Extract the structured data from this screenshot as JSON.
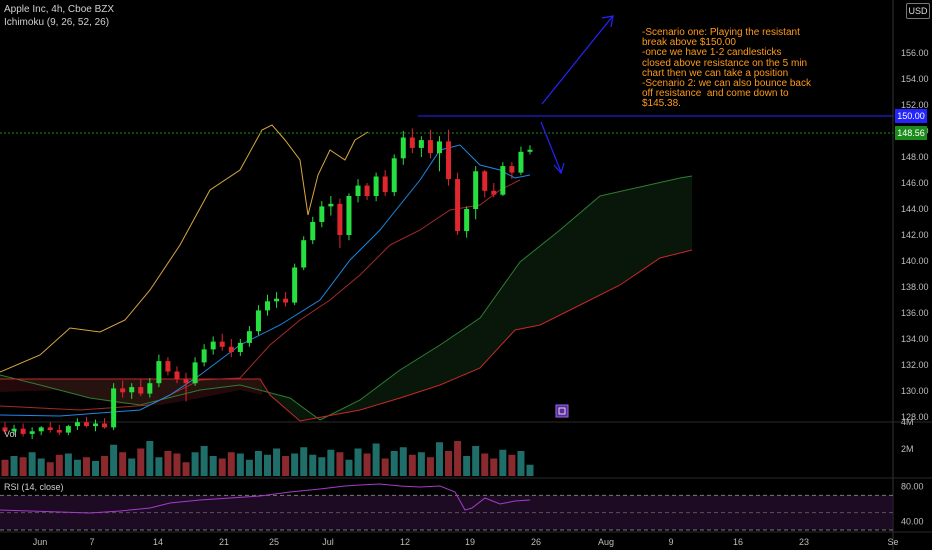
{
  "header": {
    "symbol_line": "Apple Inc, 4h, Cboe BZX",
    "indicator_line": "Ichimoku (9, 26, 52, 26)",
    "scale_badge": "USD"
  },
  "colors": {
    "background": "#000000",
    "candle_up": "#26e041",
    "candle_down": "#e0262f",
    "vol_up": "#1f6e6a",
    "vol_down": "#8a2a2e",
    "conversion_line": "#1e88e5",
    "base_line": "#a52a2a",
    "lagging_span": "#d8a640",
    "leading_a": "#2e7d32",
    "leading_b": "#c62828",
    "resistance": "#2424ff",
    "current_price": "#1b8c1b",
    "rsi_line": "#a63cc6",
    "annotation_text": "#ff9a1a"
  },
  "annotation": {
    "text": "-Scenario one: Playing the resistant break above $150.00\n-once we have 1-2 candlesticks closed above resistance on the 5 min chart then we can take a position\n-Scenario 2: we can also bounce back off resistance  and come down to $145.38.",
    "icon": "calendar-icon"
  },
  "chart_data": [
    {
      "type": "candlestick",
      "title": "Apple Inc, 4h, Cboe BZX",
      "ylim": [
        126,
        158
      ],
      "y_ticks": [
        "128.00",
        "130.00",
        "132.00",
        "134.00",
        "136.00",
        "138.00",
        "140.00",
        "142.00",
        "144.00",
        "146.00",
        "148.00",
        "150.00",
        "152.00",
        "154.00",
        "156.00"
      ],
      "x_ticks": [
        "Jun",
        "7",
        "14",
        "21",
        "25",
        "Jul",
        "12",
        "19",
        "26",
        "Aug",
        "9",
        "16",
        "23",
        "Se"
      ],
      "resistance_label": "150.00",
      "resistance_value": 150.0,
      "current_price_label": "148.56",
      "current_price": 148.56,
      "candles": [
        {
          "o": 127.2,
          "h": 127.6,
          "l": 126.7,
          "c": 126.9
        },
        {
          "o": 126.9,
          "h": 127.4,
          "l": 126.6,
          "c": 127.1
        },
        {
          "o": 127.1,
          "h": 127.5,
          "l": 126.5,
          "c": 126.7
        },
        {
          "o": 126.7,
          "h": 127.2,
          "l": 126.3,
          "c": 126.9
        },
        {
          "o": 126.9,
          "h": 127.3,
          "l": 126.6,
          "c": 127.2
        },
        {
          "o": 127.2,
          "h": 127.6,
          "l": 126.8,
          "c": 127.0
        },
        {
          "o": 127.0,
          "h": 127.4,
          "l": 126.6,
          "c": 126.8
        },
        {
          "o": 126.8,
          "h": 127.4,
          "l": 126.6,
          "c": 127.3
        },
        {
          "o": 127.3,
          "h": 127.9,
          "l": 127.0,
          "c": 127.6
        },
        {
          "o": 127.6,
          "h": 128.0,
          "l": 127.2,
          "c": 127.3
        },
        {
          "o": 127.3,
          "h": 127.8,
          "l": 126.9,
          "c": 127.5
        },
        {
          "o": 127.5,
          "h": 127.9,
          "l": 127.1,
          "c": 127.2
        },
        {
          "o": 127.2,
          "h": 130.6,
          "l": 127.0,
          "c": 130.2
        },
        {
          "o": 130.2,
          "h": 130.8,
          "l": 129.5,
          "c": 129.9
        },
        {
          "o": 129.9,
          "h": 130.6,
          "l": 129.4,
          "c": 130.3
        },
        {
          "o": 130.3,
          "h": 130.9,
          "l": 129.6,
          "c": 129.8
        },
        {
          "o": 129.8,
          "h": 131.0,
          "l": 129.5,
          "c": 130.6
        },
        {
          "o": 130.6,
          "h": 132.8,
          "l": 130.3,
          "c": 132.3
        },
        {
          "o": 132.3,
          "h": 132.6,
          "l": 131.2,
          "c": 131.5
        },
        {
          "o": 131.5,
          "h": 131.9,
          "l": 130.6,
          "c": 130.9
        },
        {
          "o": 130.9,
          "h": 131.4,
          "l": 129.2,
          "c": 130.6
        },
        {
          "o": 130.6,
          "h": 132.6,
          "l": 130.4,
          "c": 132.2
        },
        {
          "o": 132.2,
          "h": 133.6,
          "l": 131.9,
          "c": 133.2
        },
        {
          "o": 133.2,
          "h": 134.2,
          "l": 132.8,
          "c": 133.8
        },
        {
          "o": 133.8,
          "h": 134.4,
          "l": 133.1,
          "c": 133.4
        },
        {
          "o": 133.4,
          "h": 134.0,
          "l": 132.6,
          "c": 133.0
        },
        {
          "o": 133.0,
          "h": 134.0,
          "l": 132.7,
          "c": 133.7
        },
        {
          "o": 133.7,
          "h": 135.0,
          "l": 133.4,
          "c": 134.6
        },
        {
          "o": 134.6,
          "h": 136.6,
          "l": 134.3,
          "c": 136.2
        },
        {
          "o": 136.2,
          "h": 137.4,
          "l": 135.8,
          "c": 136.9
        },
        {
          "o": 136.9,
          "h": 137.6,
          "l": 136.4,
          "c": 137.1
        },
        {
          "o": 137.1,
          "h": 137.6,
          "l": 136.5,
          "c": 136.8
        },
        {
          "o": 136.8,
          "h": 139.8,
          "l": 136.6,
          "c": 139.5
        },
        {
          "o": 139.5,
          "h": 141.9,
          "l": 139.3,
          "c": 141.6
        },
        {
          "o": 141.6,
          "h": 143.4,
          "l": 141.3,
          "c": 143.0
        },
        {
          "o": 143.0,
          "h": 144.6,
          "l": 142.6,
          "c": 144.2
        },
        {
          "o": 144.2,
          "h": 145.0,
          "l": 143.5,
          "c": 144.4
        },
        {
          "o": 144.4,
          "h": 144.8,
          "l": 141.0,
          "c": 142.0
        },
        {
          "o": 142.0,
          "h": 145.2,
          "l": 141.6,
          "c": 145.0
        },
        {
          "o": 145.0,
          "h": 146.3,
          "l": 144.5,
          "c": 145.8
        },
        {
          "o": 145.8,
          "h": 146.0,
          "l": 144.7,
          "c": 145.0
        },
        {
          "o": 145.0,
          "h": 146.8,
          "l": 144.6,
          "c": 146.5
        },
        {
          "o": 146.5,
          "h": 147.0,
          "l": 145.0,
          "c": 145.3
        },
        {
          "o": 145.3,
          "h": 148.2,
          "l": 145.0,
          "c": 147.9
        },
        {
          "o": 147.9,
          "h": 150.0,
          "l": 147.4,
          "c": 149.5
        },
        {
          "o": 149.5,
          "h": 150.2,
          "l": 148.3,
          "c": 148.7
        },
        {
          "o": 148.7,
          "h": 149.6,
          "l": 148.0,
          "c": 149.3
        },
        {
          "o": 149.3,
          "h": 150.1,
          "l": 147.9,
          "c": 148.3
        },
        {
          "o": 148.3,
          "h": 149.6,
          "l": 146.9,
          "c": 149.2
        },
        {
          "o": 149.2,
          "h": 150.1,
          "l": 145.8,
          "c": 146.3
        },
        {
          "o": 146.3,
          "h": 146.8,
          "l": 142.0,
          "c": 142.3
        },
        {
          "o": 142.3,
          "h": 144.2,
          "l": 141.8,
          "c": 144.0
        },
        {
          "o": 144.0,
          "h": 147.3,
          "l": 143.2,
          "c": 146.9
        },
        {
          "o": 146.9,
          "h": 147.0,
          "l": 144.9,
          "c": 145.4
        },
        {
          "o": 145.4,
          "h": 146.0,
          "l": 144.9,
          "c": 145.1
        },
        {
          "o": 145.1,
          "h": 147.6,
          "l": 145.0,
          "c": 147.3
        },
        {
          "o": 147.3,
          "h": 147.6,
          "l": 146.3,
          "c": 146.8
        },
        {
          "o": 146.8,
          "h": 148.8,
          "l": 146.6,
          "c": 148.4
        },
        {
          "o": 148.4,
          "h": 148.9,
          "l": 148.2,
          "c": 148.56
        }
      ],
      "volume_ylim": [
        0,
        4
      ],
      "volume_ticks": [
        "4M",
        "2M"
      ],
      "volume": [
        1.3,
        1.6,
        1.5,
        1.9,
        1.4,
        1.1,
        1.7,
        1.8,
        1.3,
        1.5,
        1.2,
        1.6,
        2.5,
        1.9,
        1.4,
        2.2,
        2.8,
        1.5,
        2.0,
        1.8,
        1.1,
        1.9,
        2.4,
        1.6,
        1.4,
        1.9,
        1.8,
        1.3,
        2.0,
        1.7,
        2.2,
        1.6,
        1.8,
        2.3,
        1.7,
        1.5,
        2.1,
        1.9,
        1.3,
        2.2,
        1.8,
        2.6,
        1.4,
        2.0,
        2.3,
        1.7,
        1.9,
        1.5,
        2.7,
        2.0,
        2.8,
        1.6,
        2.4,
        1.8,
        1.4,
        2.1,
        1.7,
        2.0,
        0.9
      ],
      "rsi_title": "RSI (14, close)",
      "rsi_ylim": [
        30,
        90
      ],
      "rsi_ticks": [
        "80.00",
        "40.00"
      ],
      "rsi_bands": [
        70,
        30
      ]
    }
  ]
}
